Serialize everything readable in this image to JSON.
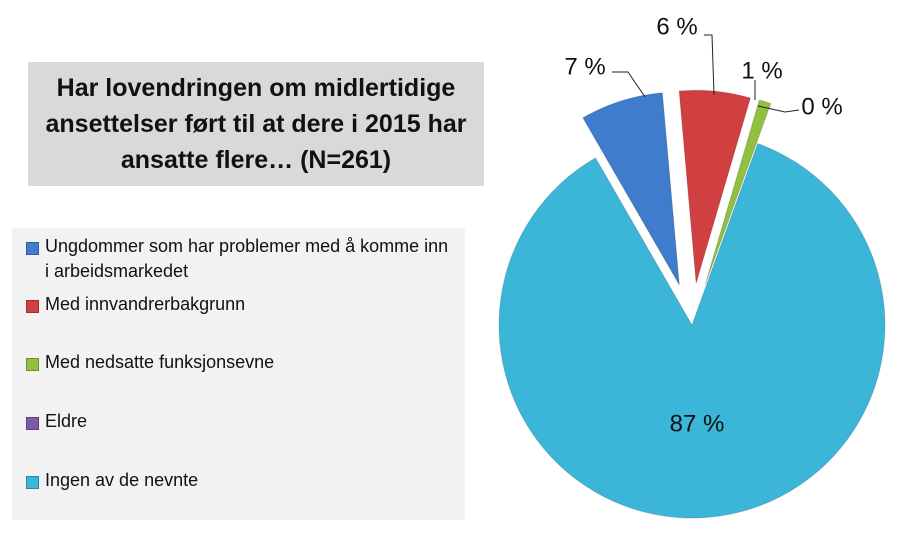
{
  "chart_data": {
    "type": "pie",
    "title": "Har lovendringen om midlertidige ansettelser ført til at dere i 2015 har ansatte flere… (N=261)",
    "legend_position": "left",
    "categories": [
      "Ungdommer som har problemer med å komme inn i arbeidsmarkedet",
      "Med innvandrerbakgrunn",
      "Med nedsatte funksjonsevne",
      "Eldre",
      "Ingen av de nevnte"
    ],
    "values": [
      7,
      6,
      1,
      0,
      87
    ],
    "labels": [
      "7 %",
      "6 %",
      "1 %",
      "0 %",
      "87 %"
    ],
    "colors": [
      "#3f7ccc",
      "#d04040",
      "#8fc040",
      "#7e5aa8",
      "#3bb5d8"
    ],
    "exploded": [
      true,
      true,
      true,
      true,
      false
    ]
  }
}
